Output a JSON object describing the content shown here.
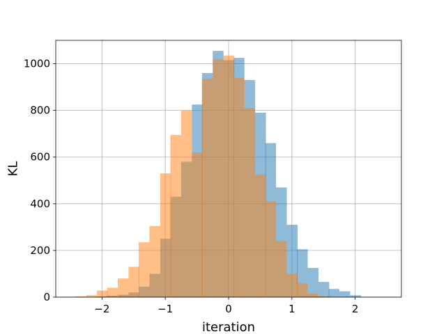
{
  "chart_data": {
    "type": "bar",
    "title": "",
    "xlabel": "iteration",
    "ylabel": "KL",
    "xlim": [
      -2.73,
      2.73
    ],
    "ylim": [
      0,
      1100
    ],
    "grid": true,
    "bin_width": 0.1667,
    "xticks": [
      -2,
      -1,
      0,
      1,
      2
    ],
    "xtick_labels": [
      "−2",
      "−1",
      "0",
      "1",
      "2"
    ],
    "yticks": [
      0,
      200,
      400,
      600,
      800,
      1000
    ],
    "ytick_labels": [
      "0",
      "200",
      "400",
      "600",
      "800",
      "1000"
    ],
    "series": [
      {
        "color": "#1f77b4",
        "alpha": 0.5,
        "bin_starts": [
          -2.08,
          -1.92,
          -1.75,
          -1.58,
          -1.42,
          -1.25,
          -1.08,
          -0.92,
          -0.75,
          -0.58,
          -0.42,
          -0.25,
          -0.08,
          0.08,
          0.25,
          0.42,
          0.58,
          0.75,
          0.92,
          1.08,
          1.25,
          1.42,
          1.58,
          1.75,
          1.92
        ],
        "values": [
          3,
          6,
          10,
          20,
          45,
          100,
          250,
          430,
          580,
          825,
          960,
          1055,
          1015,
          1025,
          930,
          790,
          660,
          470,
          310,
          205,
          125,
          65,
          35,
          25,
          8
        ]
      },
      {
        "color": "#ff7f0e",
        "alpha": 0.5,
        "bin_starts": [
          -2.42,
          -2.25,
          -2.08,
          -1.92,
          -1.75,
          -1.58,
          -1.42,
          -1.25,
          -1.08,
          -0.92,
          -0.75,
          -0.58,
          -0.42,
          -0.25,
          -0.08,
          0.08,
          0.25,
          0.42,
          0.58,
          0.75,
          0.92,
          1.08,
          1.25,
          1.42
        ],
        "values": [
          3,
          8,
          28,
          40,
          80,
          130,
          235,
          305,
          530,
          695,
          800,
          620,
          935,
          1020,
          1035,
          940,
          810,
          525,
          410,
          240,
          100,
          60,
          15,
          3
        ]
      }
    ]
  }
}
